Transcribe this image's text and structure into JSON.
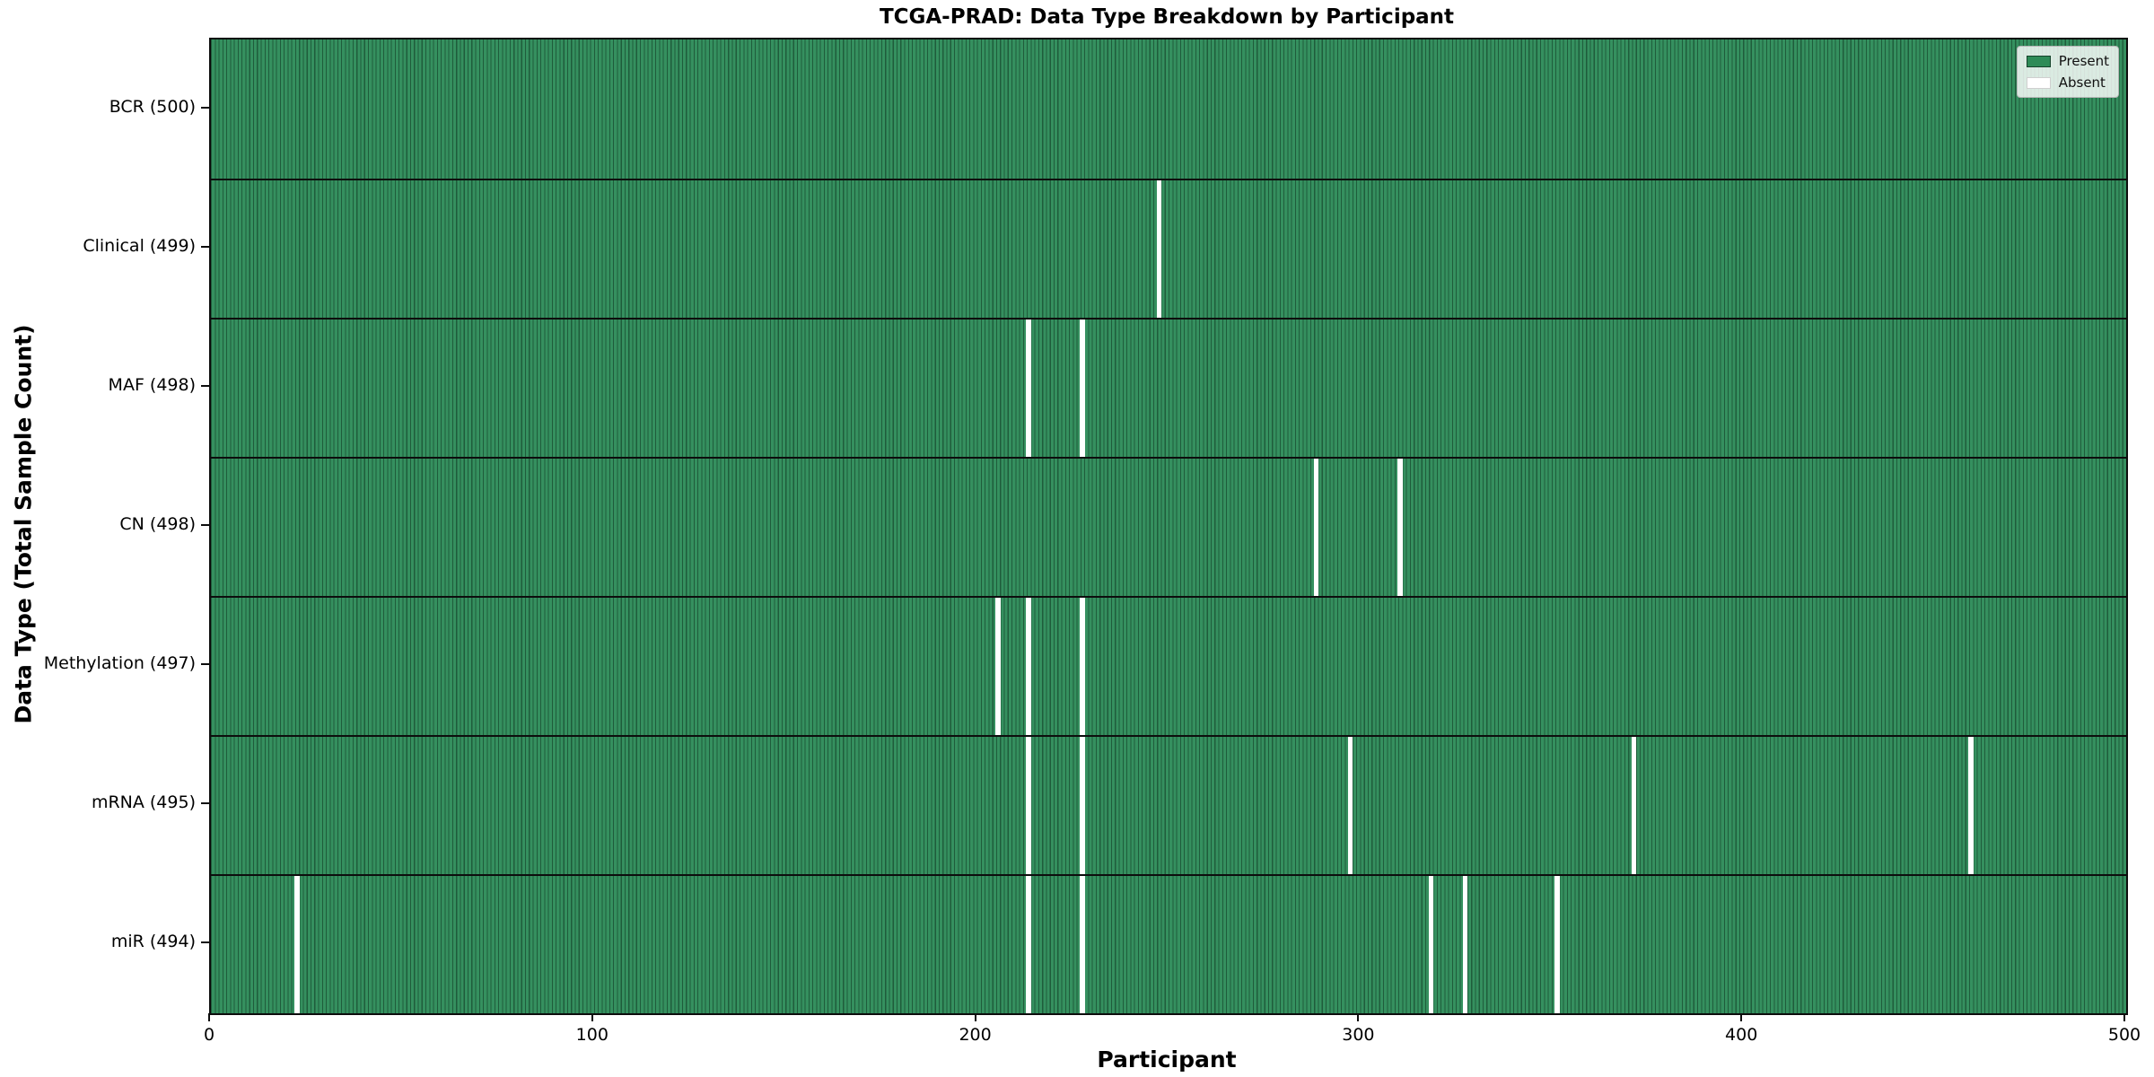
{
  "chart_data": {
    "type": "heatmap",
    "title": "TCGA-PRAD: Data Type Breakdown by Participant",
    "xlabel": "Participant",
    "ylabel": "Data Type (Total Sample Count)",
    "xlim": [
      0,
      500
    ],
    "x_ticks": [
      0,
      100,
      200,
      300,
      400,
      500
    ],
    "n_participants": 500,
    "grid": false,
    "legend": {
      "position": "upper right",
      "entries": [
        {
          "label": "Present",
          "color": "#2e8b57",
          "edge": "#15422b"
        },
        {
          "label": "Absent",
          "color": "#ffffff",
          "edge": "#cfcfcf"
        }
      ]
    },
    "rows": [
      {
        "label": "BCR (500)",
        "data_type": "BCR",
        "total": 500,
        "absent_participants": []
      },
      {
        "label": "Clinical (499)",
        "data_type": "Clinical",
        "total": 499,
        "absent_participants": [
          247
        ]
      },
      {
        "label": "MAF (498)",
        "data_type": "MAF",
        "total": 498,
        "absent_participants": [
          213,
          227
        ]
      },
      {
        "label": "CN (498)",
        "data_type": "CN",
        "total": 498,
        "absent_participants": [
          288,
          310
        ]
      },
      {
        "label": "Methylation (497)",
        "data_type": "Methylation",
        "total": 497,
        "absent_participants": [
          205,
          213,
          227
        ]
      },
      {
        "label": "mRNA (495)",
        "data_type": "mRNA",
        "total": 495,
        "absent_participants": [
          213,
          227,
          297,
          371,
          459
        ]
      },
      {
        "label": "miR (494)",
        "data_type": "miR",
        "total": 494,
        "absent_participants": [
          22,
          213,
          227,
          318,
          327,
          351
        ]
      }
    ],
    "colors": {
      "present_fill": "#35905f",
      "bar_edge": "#1f5c3b",
      "absent_fill": "#ffffff",
      "separator": "#0d0d0d"
    }
  }
}
